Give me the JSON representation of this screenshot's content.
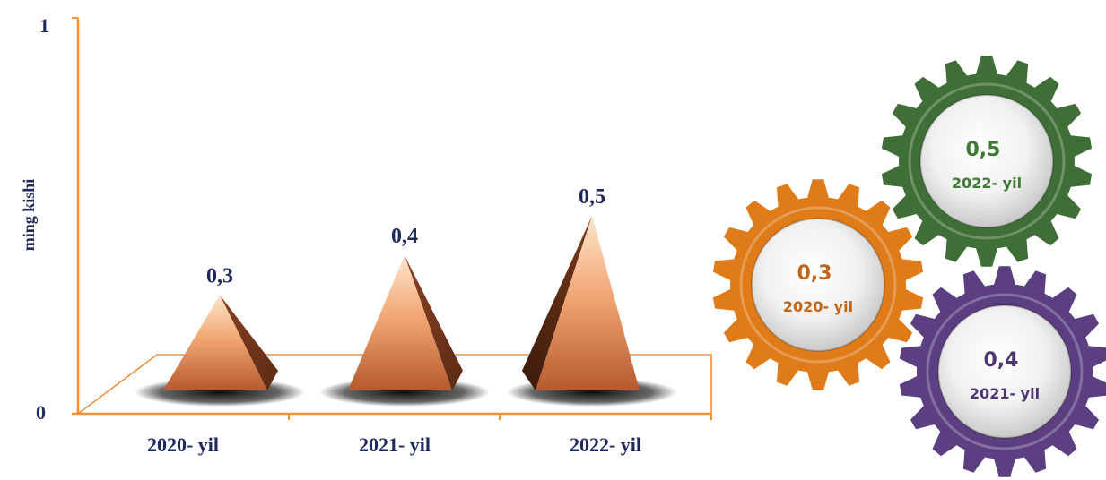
{
  "chart_data": {
    "type": "bar",
    "categories": [
      "2020- yil",
      "2021- yil",
      "2022- yil"
    ],
    "values": [
      0.3,
      0.4,
      0.5
    ],
    "value_labels": [
      "0,3",
      "0,4",
      "0,5"
    ],
    "ylabel": "ming kishi",
    "ylim": [
      0,
      1
    ],
    "y_tick_labels": [
      "0",
      "1"
    ],
    "grid": false,
    "legend": "none"
  },
  "gears": [
    {
      "value": "0,3",
      "year": "2020- yil",
      "color": "#e07b1a",
      "text_color": "#c0661a"
    },
    {
      "value": "0,4",
      "year": "2021- yil",
      "color": "#5b3f80",
      "text_color": "#4d3670"
    },
    {
      "value": "0,5",
      "year": "2022- yil",
      "color": "#3f6e37",
      "text_color": "#3f7a35"
    }
  ],
  "colors": {
    "axis": "#f0913a",
    "label_text": "#1f2a5c",
    "pyramid_light": "#fde2c4",
    "pyramid_dark": "#a8552a"
  }
}
